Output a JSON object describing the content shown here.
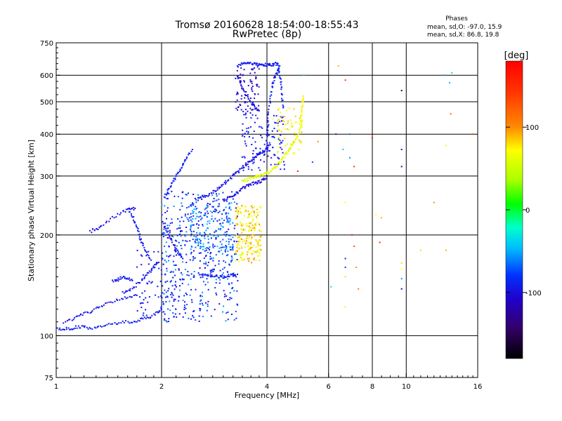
{
  "chart_data": {
    "type": "scatter",
    "title": "Tromsø 20160628 18:54:00-18:55:43",
    "subtitle": "RwPretec (8p)",
    "xlabel": "Frequency [MHz]",
    "ylabel": "Stationary phase Virtual Height [km]",
    "x_scale": "log",
    "y_scale": "log",
    "xlim": [
      1,
      16
    ],
    "ylim": [
      75,
      750
    ],
    "x_ticks": [
      1,
      2,
      4,
      6,
      8,
      10,
      16
    ],
    "y_ticks": [
      75,
      100,
      200,
      300,
      400,
      500,
      600,
      750
    ],
    "x_ticks_labels": [
      "1",
      "2",
      "4",
      "6",
      "8",
      "10",
      "16"
    ],
    "y_ticks_labels": [
      "75",
      "100",
      "200",
      "300",
      "400",
      "500",
      "600",
      "750"
    ],
    "x_grid_lines": [
      2,
      4,
      6,
      8,
      10
    ],
    "y_grid_lines": [
      100,
      200,
      300,
      400,
      500,
      600
    ],
    "grid": true,
    "phase_box": {
      "heading": "Phases",
      "line_o": "mean, sd,O: -97.0, 15.9",
      "line_x": "mean, sd,X:  86.8, 19.8"
    },
    "colorbar": {
      "label": "[deg]",
      "range": [
        -180,
        180
      ],
      "ticks": [
        100,
        0,
        -100
      ],
      "tick_labels": [
        "100",
        "0",
        "-100"
      ]
    },
    "traces": [
      {
        "x": [
          1.0,
          1.05,
          1.1,
          1.15,
          1.2,
          1.27,
          1.35,
          1.45,
          1.55,
          1.65,
          1.75,
          1.85,
          1.95,
          2.0
        ],
        "y": [
          105,
          105,
          105,
          106,
          106,
          105,
          107,
          108,
          110,
          110,
          112,
          114,
          117,
          120
        ],
        "phase": -105
      },
      {
        "x": [
          1.05,
          1.12,
          1.18,
          1.25,
          1.32,
          1.4,
          1.5,
          1.6,
          1.7
        ],
        "y": [
          110,
          112,
          115,
          118,
          122,
          125,
          128,
          130,
          132
        ],
        "phase": -110
      },
      {
        "x": [
          1.25,
          1.3,
          1.35,
          1.45,
          1.55,
          1.62,
          1.68
        ],
        "y": [
          205,
          208,
          212,
          225,
          235,
          238,
          240
        ],
        "phase": -115
      },
      {
        "x": [
          1.62,
          1.66,
          1.7,
          1.73,
          1.75,
          1.8,
          1.85
        ],
        "y": [
          235,
          225,
          212,
          200,
          190,
          180,
          170
        ],
        "phase": -110
      },
      {
        "x": [
          1.45,
          1.5,
          1.55,
          1.6,
          1.65
        ],
        "y": [
          145,
          147,
          150,
          148,
          146
        ],
        "phase": -108
      },
      {
        "x": [
          1.55,
          1.62,
          1.7,
          1.78,
          1.85,
          1.9,
          1.95
        ],
        "y": [
          135,
          137,
          142,
          148,
          155,
          160,
          165
        ],
        "phase": -112
      },
      {
        "x": [
          2.05,
          2.1,
          2.15,
          2.2,
          2.25,
          2.3,
          2.35,
          2.45
        ],
        "y": [
          260,
          275,
          285,
          300,
          310,
          325,
          340,
          360
        ],
        "phase": -100
      },
      {
        "x": [
          2.5,
          2.6,
          2.7,
          2.8,
          2.9,
          3.0,
          3.1,
          3.2,
          3.3,
          3.4,
          3.5,
          3.6,
          3.7,
          3.8,
          3.9,
          4.0,
          4.05
        ],
        "y": [
          255,
          258,
          262,
          268,
          275,
          283,
          292,
          300,
          308,
          317,
          325,
          333,
          340,
          348,
          355,
          362,
          370
        ],
        "phase": -112
      },
      {
        "x": [
          3.0,
          3.1,
          3.2,
          3.3,
          3.4,
          3.5,
          3.6,
          3.7,
          3.8,
          3.9,
          4.0
        ],
        "y": [
          255,
          258,
          262,
          268,
          275,
          280,
          283,
          286,
          288,
          292,
          300
        ],
        "phase": -120
      },
      {
        "x": [
          4.0,
          4.0,
          4.02,
          4.05,
          4.1,
          4.15,
          4.2,
          4.3,
          4.35
        ],
        "y": [
          370,
          400,
          430,
          470,
          520,
          560,
          590,
          620,
          640
        ],
        "phase": -105
      },
      {
        "x": [
          4.3,
          4.35,
          4.4,
          4.42,
          4.45
        ],
        "y": [
          640,
          600,
          560,
          520,
          480
        ],
        "phase": -102
      },
      {
        "x": [
          3.3,
          3.4,
          3.5,
          3.6,
          3.7,
          3.8,
          3.9,
          4.0,
          4.1,
          4.2,
          4.3
        ],
        "y": [
          640,
          648,
          650,
          650,
          648,
          646,
          645,
          644,
          645,
          648,
          650
        ],
        "phase": -108
      },
      {
        "x": [
          3.3,
          3.35,
          3.4,
          3.5,
          3.6,
          3.7,
          3.8
        ],
        "y": [
          600,
          575,
          550,
          520,
          500,
          480,
          470
        ],
        "phase": -118
      },
      {
        "x": [
          3.4,
          3.5,
          3.6,
          3.7,
          3.8,
          3.9,
          4.0,
          4.1,
          4.2,
          4.3,
          4.4,
          4.5,
          4.6,
          4.7,
          4.8,
          4.9,
          5.0,
          5.05
        ],
        "y": [
          290,
          292,
          295,
          298,
          300,
          303,
          305,
          310,
          318,
          325,
          335,
          345,
          355,
          368,
          380,
          395,
          420,
          440
        ],
        "phase": 70
      },
      {
        "x": [
          5.0,
          5.02,
          5.05,
          5.05,
          5.08
        ],
        "y": [
          440,
          460,
          480,
          500,
          520
        ],
        "phase": 85
      },
      {
        "x": [
          2.05,
          2.1,
          2.15,
          2.2,
          2.3
        ],
        "y": [
          210,
          200,
          190,
          180,
          170
        ],
        "phase": -120
      },
      {
        "x": [
          2.6,
          2.7,
          2.8,
          2.9,
          3.0,
          3.1,
          3.2,
          3.25
        ],
        "y": [
          152,
          152,
          151,
          150,
          150,
          151,
          152,
          152
        ],
        "phase": -105
      }
    ],
    "clouds": [
      {
        "xr": [
          2.0,
          3.3
        ],
        "yr": [
          110,
          270
        ],
        "n": 520,
        "phases": [
          -125,
          -110,
          -100,
          -95,
          -75,
          -60
        ],
        "seed": 11
      },
      {
        "xr": [
          2.4,
          3.2
        ],
        "yr": [
          180,
          250
        ],
        "n": 120,
        "phases": [
          -85,
          -70,
          -60,
          -50
        ],
        "seed": 23
      },
      {
        "xr": [
          1.7,
          2.2
        ],
        "yr": [
          110,
          180
        ],
        "n": 70,
        "phases": [
          -110,
          -105
        ],
        "seed": 31
      },
      {
        "xr": [
          3.25,
          3.85
        ],
        "yr": [
          165,
          245
        ],
        "n": 200,
        "phases": [
          70,
          75,
          80,
          90,
          100,
          110
        ],
        "seed": 41
      },
      {
        "xr": [
          3.25,
          3.8
        ],
        "yr": [
          460,
          640
        ],
        "n": 80,
        "phases": [
          -115,
          -120,
          -140
        ],
        "seed": 53
      },
      {
        "xr": [
          3.4,
          4.5
        ],
        "yr": [
          310,
          460
        ],
        "n": 120,
        "phases": [
          -110,
          -100
        ],
        "seed": 67
      },
      {
        "xr": [
          4.25,
          5.05
        ],
        "yr": [
          350,
          480
        ],
        "n": 60,
        "phases": [
          75,
          85,
          95
        ],
        "seed": 71
      }
    ],
    "scattered": [
      {
        "x": 6.4,
        "y": 640,
        "phase": 100
      },
      {
        "x": 6.7,
        "y": 580,
        "phase": 150
      },
      {
        "x": 6.6,
        "y": 360,
        "phase": -45
      },
      {
        "x": 6.9,
        "y": 340,
        "phase": -60
      },
      {
        "x": 7.1,
        "y": 320,
        "phase": 150
      },
      {
        "x": 6.3,
        "y": 400,
        "phase": -120
      },
      {
        "x": 6.9,
        "y": 400,
        "phase": -70
      },
      {
        "x": 8.0,
        "y": 390,
        "phase": 160
      },
      {
        "x": 9.7,
        "y": 540,
        "phase": -170
      },
      {
        "x": 9.7,
        "y": 360,
        "phase": -140
      },
      {
        "x": 9.7,
        "y": 320,
        "phase": -150
      },
      {
        "x": 12.8,
        "y": 600,
        "phase": -60
      },
      {
        "x": 13.5,
        "y": 610,
        "phase": -40
      },
      {
        "x": 13.3,
        "y": 570,
        "phase": -50
      },
      {
        "x": 13.4,
        "y": 460,
        "phase": 130
      },
      {
        "x": 13.0,
        "y": 370,
        "phase": 80
      },
      {
        "x": 15.5,
        "y": 400,
        "phase": 150
      },
      {
        "x": 12.0,
        "y": 250,
        "phase": 110
      },
      {
        "x": 13.0,
        "y": 180,
        "phase": 100
      },
      {
        "x": 11.0,
        "y": 180,
        "phase": 90
      },
      {
        "x": 8.2,
        "y": 230,
        "phase": 80
      },
      {
        "x": 8.5,
        "y": 225,
        "phase": 100
      },
      {
        "x": 9.7,
        "y": 165,
        "phase": 90
      },
      {
        "x": 9.7,
        "y": 158,
        "phase": 80
      },
      {
        "x": 9.7,
        "y": 148,
        "phase": -60
      },
      {
        "x": 9.7,
        "y": 138,
        "phase": -150
      },
      {
        "x": 7.2,
        "y": 160,
        "phase": 110
      },
      {
        "x": 7.3,
        "y": 138,
        "phase": 120
      },
      {
        "x": 6.7,
        "y": 150,
        "phase": 90
      },
      {
        "x": 6.7,
        "y": 170,
        "phase": -110
      },
      {
        "x": 6.7,
        "y": 160,
        "phase": -90
      },
      {
        "x": 6.7,
        "y": 122,
        "phase": 70
      },
      {
        "x": 6.7,
        "y": 250,
        "phase": 80
      },
      {
        "x": 7.1,
        "y": 185,
        "phase": 140
      },
      {
        "x": 7.0,
        "y": 200,
        "phase": 170
      },
      {
        "x": 6.1,
        "y": 140,
        "phase": -40
      },
      {
        "x": 5.4,
        "y": 330,
        "phase": -80
      },
      {
        "x": 5.1,
        "y": 600,
        "phase": -45
      },
      {
        "x": 4.9,
        "y": 310,
        "phase": 160
      },
      {
        "x": 5.6,
        "y": 380,
        "phase": 110
      },
      {
        "x": 8.4,
        "y": 190,
        "phase": 150
      }
    ]
  }
}
